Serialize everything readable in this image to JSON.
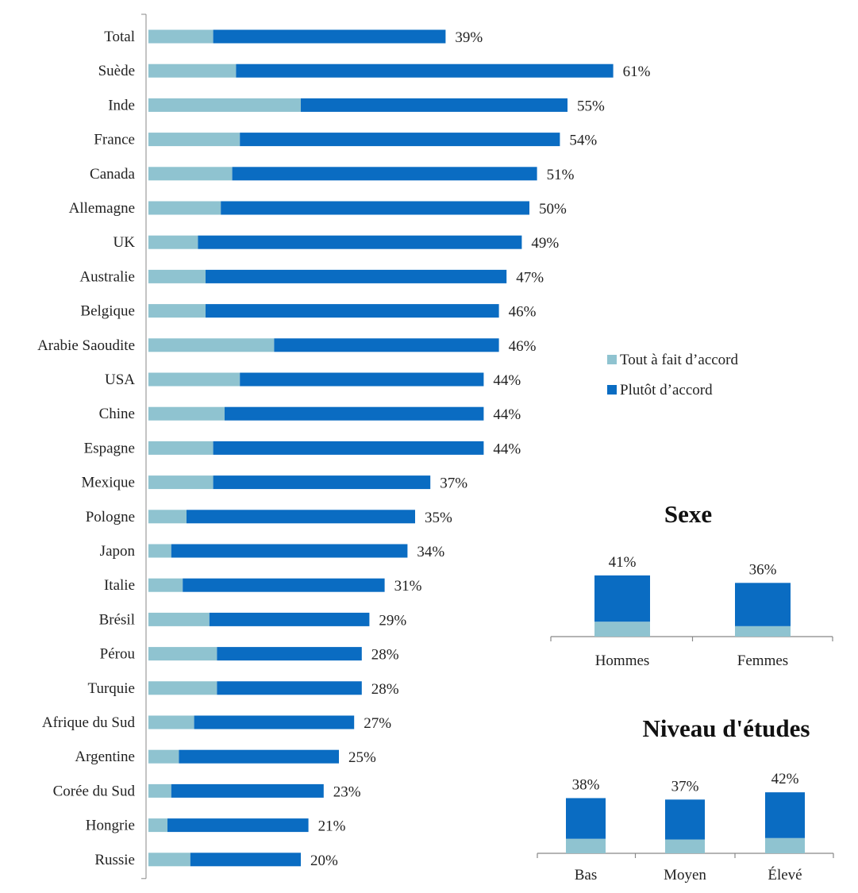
{
  "colors": {
    "light": "#8fc3d0",
    "dark": "#0a6cc2",
    "axis": "#888888"
  },
  "legend": {
    "light_label": "Tout à fait d’accord",
    "dark_label": "Plutôt d’accord"
  },
  "chart_data": [
    {
      "type": "bar",
      "orientation": "horizontal",
      "stacked": true,
      "unit": "%",
      "categories": [
        "Total",
        "Suède",
        "Inde",
        "France",
        "Canada",
        "Allemagne",
        "UK",
        "Australie",
        "Belgique",
        "Arabie Saoudite",
        "USA",
        "Chine",
        "Espagne",
        "Mexique",
        "Pologne",
        "Japon",
        "Italie",
        "Brésil",
        "Pérou",
        "Turquie",
        "Afrique du Sud",
        "Argentine",
        "Corée du Sud",
        "Hongrie",
        "Russie"
      ],
      "series": [
        {
          "name": "Tout à fait d’accord",
          "values": [
            8.5,
            11.5,
            20,
            12,
            11,
            9.5,
            6.5,
            7.5,
            7.5,
            16.5,
            12,
            10,
            8.5,
            8.5,
            5,
            3,
            4.5,
            8,
            9,
            9,
            6,
            4,
            3,
            2.5,
            5.5
          ]
        },
        {
          "name": "Plutôt d’accord",
          "values": [
            30.5,
            49.5,
            35,
            42,
            40,
            40.5,
            42.5,
            39.5,
            38.5,
            29.5,
            32,
            34,
            35.5,
            28.5,
            30,
            31,
            26.5,
            21,
            19,
            19,
            21,
            21,
            20,
            18.5,
            14.5
          ]
        }
      ],
      "totals": [
        "39%",
        "61%",
        "55%",
        "54%",
        "51%",
        "50%",
        "49%",
        "47%",
        "46%",
        "46%",
        "44%",
        "44%",
        "44%",
        "37%",
        "35%",
        "34%",
        "31%",
        "29%",
        "28%",
        "28%",
        "27%",
        "25%",
        "23%",
        "21%",
        "20%"
      ],
      "legend_position": "right"
    },
    {
      "type": "bar",
      "stacked": true,
      "title": "Sexe",
      "unit": "%",
      "categories": [
        "Hommes",
        "Femmes"
      ],
      "series": [
        {
          "name": "Tout à fait d’accord",
          "values": [
            10,
            7
          ]
        },
        {
          "name": "Plutôt d’accord",
          "values": [
            31,
            29
          ]
        }
      ],
      "totals": [
        "41%",
        "36%"
      ]
    },
    {
      "type": "bar",
      "stacked": true,
      "title": "Niveau d'études",
      "unit": "%",
      "categories": [
        "Bas",
        "Moyen",
        "Élevé"
      ],
      "series": [
        {
          "name": "Tout à fait d’accord",
          "values": [
            10,
            9.5,
            10.5
          ]
        },
        {
          "name": "Plutôt d’accord",
          "values": [
            28,
            27.5,
            31.5
          ]
        }
      ],
      "totals": [
        "38%",
        "37%",
        "42%"
      ]
    }
  ]
}
